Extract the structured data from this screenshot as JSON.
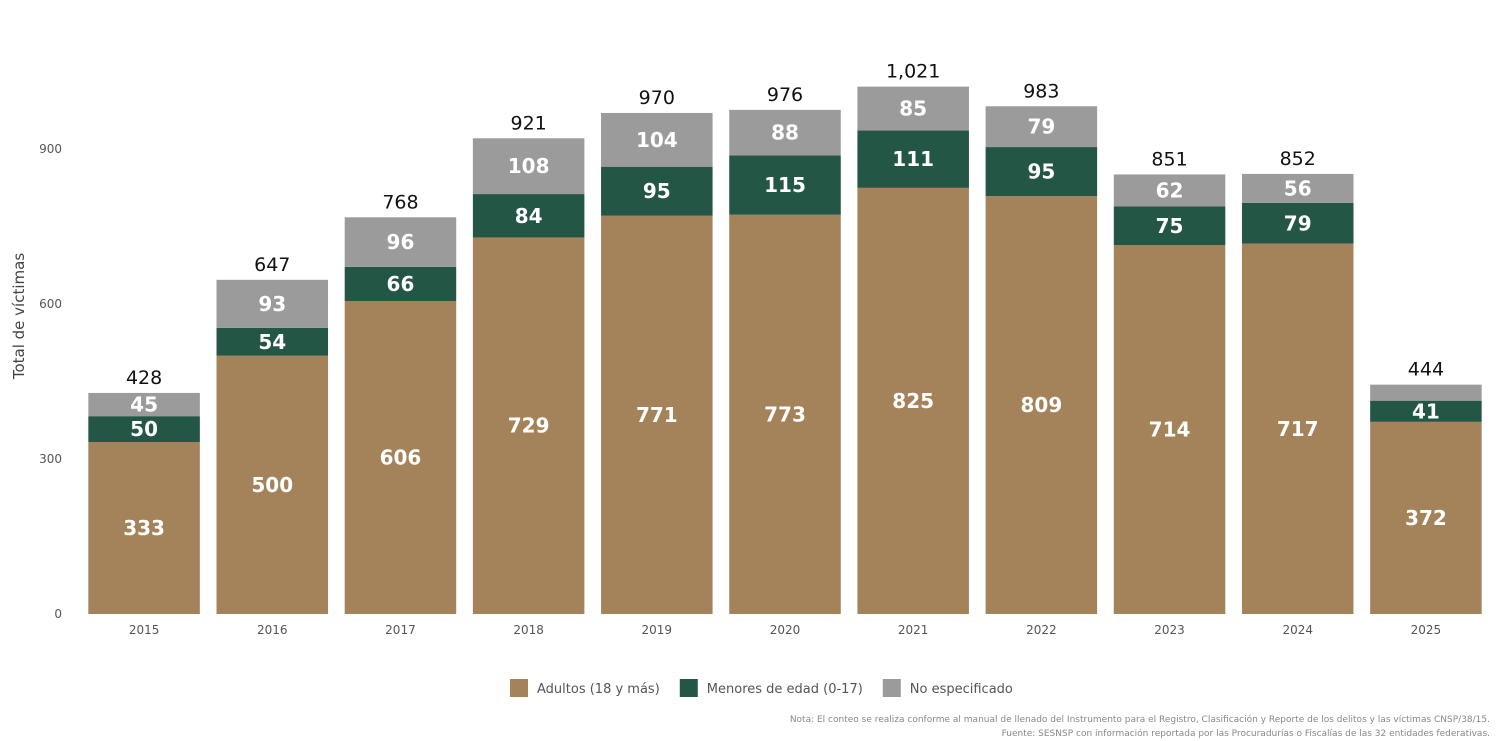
{
  "chart_data": {
    "type": "bar",
    "stacked": true,
    "categories": [
      "2015",
      "2016",
      "2017",
      "2018",
      "2019",
      "2020",
      "2021",
      "2022",
      "2023",
      "2024",
      "2025"
    ],
    "series": [
      {
        "name": "Adultos (18 y más)",
        "color": "#a4835a",
        "values": [
          333,
          500,
          606,
          729,
          771,
          773,
          825,
          809,
          714,
          717,
          372
        ]
      },
      {
        "name": "Menores de edad (0-17)",
        "color": "#245646",
        "values": [
          50,
          54,
          66,
          84,
          95,
          115,
          111,
          95,
          75,
          79,
          41
        ]
      },
      {
        "name": "No especificado",
        "color": "#9b9b9b",
        "values": [
          45,
          93,
          96,
          108,
          104,
          88,
          85,
          79,
          62,
          56,
          31
        ]
      }
    ],
    "totals": [
      "428",
      "647",
      "768",
      "921",
      "970",
      "976",
      "1,021",
      "983",
      "851",
      "852",
      "444"
    ],
    "segment_labels": [
      [
        "333",
        "500",
        "606",
        "729",
        "771",
        "773",
        "825",
        "809",
        "714",
        "717",
        "372"
      ],
      [
        "50",
        "54",
        "66",
        "84",
        "95",
        "115",
        "111",
        "95",
        "75",
        "79",
        "41"
      ],
      [
        "45",
        "93",
        "96",
        "108",
        "104",
        "88",
        "85",
        "79",
        "62",
        "56",
        ""
      ]
    ],
    "ylabel": "Total de víctimas",
    "yticks": [
      0,
      300,
      600,
      900
    ],
    "ytick_labels": [
      "0",
      "300",
      "600",
      "900"
    ],
    "ylim": [
      0,
      1150
    ],
    "legend_position": "bottom-center",
    "grid": false,
    "notes": [
      "Nota: El conteo se realiza conforme al manual de llenado del Instrumento para el Registro, Clasificación y Reporte de los delitos y las víctimas CNSP/38/15.",
      "Fuente: SESNSP con información reportada por las Procuradurías o Fiscalías de las 32 entidades federativas."
    ]
  }
}
